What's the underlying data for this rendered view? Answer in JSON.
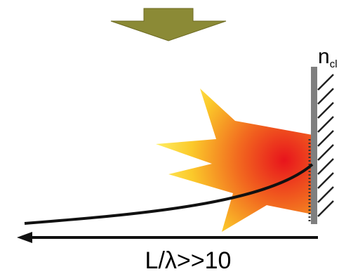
{
  "wall_label": {
    "main": "n",
    "subscript": "cl"
  },
  "distance_label": "L/λ>>10"
}
